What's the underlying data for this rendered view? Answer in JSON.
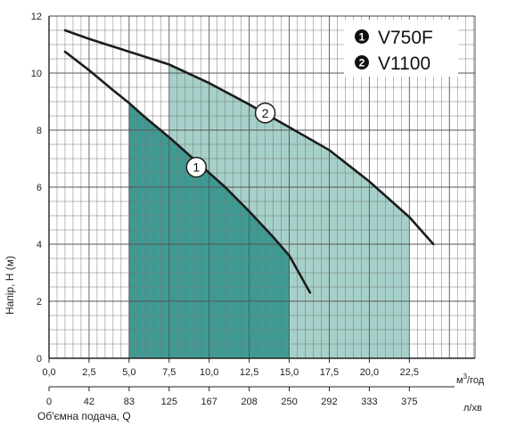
{
  "chart_data": {
    "type": "line",
    "title": "",
    "ylabel": "Напір, Н (м)",
    "xlabel": "Об'ємна подача, Q",
    "x_unit_top": "м",
    "x_unit_top_sup": "3",
    "x_unit_top_tail": "/год",
    "x_unit_bottom": "л/хв",
    "xlim": [
      0,
      25
    ],
    "ylim": [
      0,
      12
    ],
    "y_ticks": [
      "0",
      "2",
      "4",
      "6",
      "8",
      "10",
      "12"
    ],
    "x_ticks_top": [
      "0,0",
      "2,5",
      "5,0",
      "7,5",
      "10,0",
      "12,5",
      "15,0",
      "17,5",
      "20,0",
      "22,5"
    ],
    "x_ticks_bottom": [
      "0",
      "42",
      "83",
      "125",
      "167",
      "208",
      "250",
      "292",
      "333",
      "375"
    ],
    "grid": true,
    "legend": {
      "placement": "top-right",
      "entries": [
        {
          "marker": "1",
          "label": "V750F"
        },
        {
          "marker": "2",
          "label": "V1100"
        }
      ]
    },
    "series": [
      {
        "marker": "1",
        "label_at": [
          9.2,
          6.7
        ],
        "range": [
          5.0,
          15.0
        ],
        "color": "#3e9a92",
        "points": [
          [
            1,
            10.75
          ],
          [
            2.5,
            10.1
          ],
          [
            4,
            9.4
          ],
          [
            5,
            8.95
          ],
          [
            6,
            8.45
          ],
          [
            7.5,
            7.75
          ],
          [
            9,
            7.0
          ],
          [
            10,
            6.5
          ],
          [
            11,
            6.0
          ],
          [
            12.5,
            5.15
          ],
          [
            14,
            4.25
          ],
          [
            15,
            3.6
          ],
          [
            16.3,
            2.3
          ]
        ]
      },
      {
        "marker": "2",
        "label_at": [
          13.5,
          8.6
        ],
        "range": [
          7.5,
          22.5
        ],
        "color": "#a6d0c9",
        "points": [
          [
            1,
            11.5
          ],
          [
            2.5,
            11.2
          ],
          [
            5,
            10.75
          ],
          [
            7.5,
            10.3
          ],
          [
            10,
            9.65
          ],
          [
            12.5,
            8.9
          ],
          [
            15,
            8.1
          ],
          [
            17.5,
            7.3
          ],
          [
            20,
            6.2
          ],
          [
            22.5,
            4.95
          ],
          [
            24,
            4.0
          ]
        ]
      }
    ]
  }
}
